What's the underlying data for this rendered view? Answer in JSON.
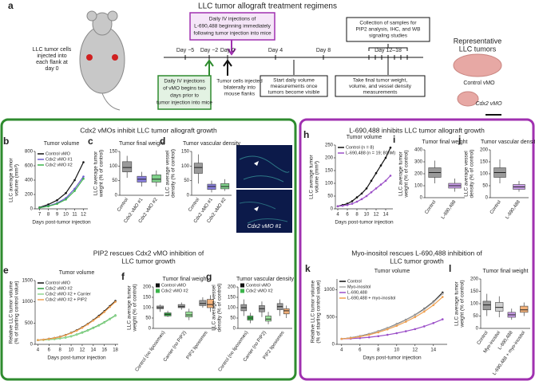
{
  "panel_a": {
    "letter": "a",
    "title": "LLC tumor allograft treatment regimens",
    "mouse_caption": [
      "LLC tumor cells",
      "injected into",
      "each flank at",
      "day 0"
    ],
    "days": [
      "Day −5",
      "Day −2",
      "Day 0",
      "Day 4",
      "Day 8",
      "Day 12–18"
    ],
    "purple_box": [
      "Daily IV injections of",
      "L-690,488 beginning immediately",
      "following tumor injection into mice"
    ],
    "green_box": [
      "Daily IV injections",
      "of vMO begins two",
      "days prior to",
      "tumor injection into mice"
    ],
    "injected": [
      "Tumor cells injected",
      "bilaterally into",
      "mouse flanks"
    ],
    "start_box": [
      "Start daily volume",
      "measurements once",
      "tumors become visible"
    ],
    "final_box": [
      "Take final tumor weight,",
      "volume, and vessel density",
      "measurements"
    ],
    "collection_box": [
      "Collection of samples for",
      "PIP2 analysis, IHC, and WB",
      "signaling studies"
    ],
    "tumors_title": [
      "Representative",
      "LLC tumors"
    ],
    "tumor_control": "Control vMO",
    "tumor_cdx2": "Cdx2 vMO"
  },
  "sections": [
    [
      "Cdx2 vMOs inhibit LLC tumor allograft growth"
    ],
    [
      "PIP2 rescues Cdx2 vMO inhibition of",
      "LLC tumor growth"
    ],
    [
      "L-690,488 inhibits LLC tumor allograft growth"
    ],
    [
      "Myo-inositol rescues L-690,488 inhibition of",
      "LLC tumor growth"
    ]
  ],
  "micrograph_label": "Cdx2 vMO #1",
  "chart_data": [
    {
      "type": "line",
      "panel": "b",
      "title": "Tumor volume",
      "xlabel": "Days post-tumor injection",
      "ylabel": [
        "LLC average tumor",
        "volume (mm³)"
      ],
      "x": [
        7,
        8,
        9,
        10,
        11,
        12
      ],
      "xlim": [
        6.5,
        12.5
      ],
      "xticks": [
        7,
        8,
        9,
        10,
        11,
        12
      ],
      "ylim": [
        0,
        800
      ],
      "yticks": [
        0,
        200,
        400,
        600,
        800
      ],
      "series": [
        {
          "name": "Control vMO",
          "color": "#111111",
          "values": [
            20,
            60,
            120,
            220,
            400,
            650
          ]
        },
        {
          "name": "Cdx2 vMO #1",
          "color": "#6a5acd",
          "values": [
            15,
            40,
            80,
            150,
            280,
            450
          ]
        },
        {
          "name": "Cdx2 vMO #2",
          "color": "#3cb44b",
          "values": [
            15,
            35,
            70,
            130,
            250,
            420
          ]
        }
      ]
    },
    {
      "type": "box",
      "panel": "c",
      "title": "Tumor final weight",
      "ylabel": [
        "LLC average tumor",
        "weight (% of control)"
      ],
      "categories": [
        "Control",
        "Cdx2 vMO #1",
        "Cdx2 vMO #2"
      ],
      "ylim": [
        0,
        150
      ],
      "yticks": [
        0,
        50,
        100,
        150
      ],
      "boxes": [
        {
          "color": "#9a9a9a",
          "min": 60,
          "q1": 80,
          "median": 95,
          "q3": 115,
          "max": 135
        },
        {
          "color": "#8a7fe0",
          "min": 30,
          "q1": 45,
          "median": 55,
          "q3": 65,
          "max": 80
        },
        {
          "color": "#7fd18a",
          "min": 30,
          "q1": 45,
          "median": 55,
          "q3": 70,
          "max": 85
        }
      ]
    },
    {
      "type": "box",
      "panel": "d",
      "title": "Tumor vascular density",
      "ylabel": [
        "LLC average vessel",
        "density (% of control)"
      ],
      "categories": [
        "Control",
        "Cdx2 vMO #1",
        "Cdx2 vMO #2"
      ],
      "ylim": [
        0,
        150
      ],
      "yticks": [
        0,
        50,
        100,
        150
      ],
      "boxes": [
        {
          "color": "#9a9a9a",
          "min": 40,
          "q1": 75,
          "median": 95,
          "q3": 110,
          "max": 140
        },
        {
          "color": "#8a7fe0",
          "min": 10,
          "q1": 20,
          "median": 30,
          "q3": 38,
          "max": 50
        },
        {
          "color": "#7fd18a",
          "min": 15,
          "q1": 22,
          "median": 30,
          "q3": 40,
          "max": 55
        }
      ]
    },
    {
      "type": "line",
      "panel": "e",
      "title": "Tumor volume",
      "xlabel": "Days post-tumor injection",
      "ylabel": [
        "Relative LLC tumor volume",
        "(% of starting control value)"
      ],
      "x": [
        4,
        5,
        6,
        7,
        8,
        9,
        10,
        11,
        12,
        13,
        14,
        15,
        16,
        17,
        18
      ],
      "xlim": [
        3.5,
        18.5
      ],
      "xticks": [
        4,
        6,
        8,
        10,
        12,
        14,
        16,
        18
      ],
      "ylim": [
        0,
        1500
      ],
      "yticks": [
        0,
        500,
        1000,
        1500
      ],
      "series": [
        {
          "name": "Control vMO",
          "color": "#111111",
          "values": [
            100,
            110,
            130,
            150,
            180,
            220,
            270,
            330,
            400,
            480,
            570,
            670,
            780,
            900,
            1020
          ]
        },
        {
          "name": "Cdx2 vMO #2",
          "color": "#2e9e3e",
          "values": [
            100,
            105,
            115,
            125,
            140,
            160,
            190,
            230,
            280,
            330,
            390,
            450,
            520,
            600,
            680
          ]
        },
        {
          "name": "Cdx2 vMO #2 + Carrier",
          "color": "#8fd68f",
          "values": [
            100,
            105,
            112,
            122,
            138,
            158,
            185,
            225,
            270,
            320,
            380,
            440,
            510,
            590,
            670
          ]
        },
        {
          "name": "Cdx2 vMO #2 + PIP2",
          "color": "#f0a050",
          "values": [
            100,
            110,
            128,
            148,
            175,
            215,
            265,
            320,
            390,
            470,
            560,
            650,
            760,
            880,
            1000
          ]
        }
      ]
    },
    {
      "type": "box",
      "panel": "f",
      "title": "Tumor final weight",
      "ylabel": [
        "LLC average tumor",
        "weight (% of control)"
      ],
      "categories": [
        "Control (no liposomes)",
        "Carrier (no PIP2)",
        "PIP2 liposomes"
      ],
      "ylim": [
        0,
        200
      ],
      "yticks": [
        0,
        50,
        100,
        150,
        200
      ],
      "legend": [
        {
          "name": "Control vMO",
          "color": "#111111"
        },
        {
          "name": "Cdx2 vMO #2",
          "color": "#3cb44b"
        }
      ],
      "boxes": [
        {
          "color": "#9a9a9a",
          "min": 80,
          "q1": 95,
          "median": 100,
          "q3": 108,
          "max": 115
        },
        {
          "color": "#3cb44b",
          "min": 55,
          "q1": 60,
          "median": 68,
          "q3": 75,
          "max": 85
        },
        {
          "color": "#9a9a9a",
          "min": 90,
          "q1": 100,
          "median": 105,
          "q3": 115,
          "max": 125
        },
        {
          "color": "#9be39b",
          "min": 40,
          "q1": 55,
          "median": 65,
          "q3": 80,
          "max": 95
        },
        {
          "color": "#9a9a9a",
          "min": 100,
          "q1": 110,
          "median": 120,
          "q3": 135,
          "max": 150
        },
        {
          "color": "#f4b27a",
          "min": 80,
          "q1": 100,
          "median": 115,
          "q3": 140,
          "max": 160
        }
      ]
    },
    {
      "type": "box",
      "panel": "g",
      "title": "Tumor vascular density",
      "ylabel": [
        "LLC average vessel",
        "density (% of control)"
      ],
      "categories": [
        "Control (no liposomes)",
        "Carrier (no PIP2)",
        "PIP2 liposomes"
      ],
      "ylim": [
        0,
        200
      ],
      "yticks": [
        0,
        50,
        100,
        150,
        200
      ],
      "legend": [
        {
          "name": "Control vMO",
          "color": "#111111"
        },
        {
          "name": "Cdx2 vMO #2",
          "color": "#3cb44b"
        }
      ],
      "boxes": [
        {
          "color": "#9a9a9a",
          "min": 60,
          "q1": 85,
          "median": 100,
          "q3": 115,
          "max": 140
        },
        {
          "color": "#3cb44b",
          "min": 25,
          "q1": 40,
          "median": 50,
          "q3": 60,
          "max": 75
        },
        {
          "color": "#9a9a9a",
          "min": 55,
          "q1": 80,
          "median": 95,
          "q3": 110,
          "max": 130
        },
        {
          "color": "#9be39b",
          "min": 20,
          "q1": 35,
          "median": 45,
          "q3": 60,
          "max": 80
        },
        {
          "color": "#9a9a9a",
          "min": 60,
          "q1": 90,
          "median": 105,
          "q3": 120,
          "max": 140
        },
        {
          "color": "#f4b27a",
          "min": 50,
          "q1": 70,
          "median": 85,
          "q3": 95,
          "max": 110
        }
      ]
    },
    {
      "type": "line",
      "panel": "h",
      "title": "Tumor volume",
      "xlabel": "Days post-tumor injection",
      "ylabel": [
        "LLC average tumor",
        "volume (mm³)"
      ],
      "x": [
        4,
        5,
        6,
        7,
        8,
        9,
        10,
        11,
        12,
        13,
        14,
        15
      ],
      "xlim": [
        3.5,
        15.5
      ],
      "xticks": [
        4,
        6,
        8,
        10,
        12,
        14
      ],
      "ylim": [
        0,
        250
      ],
      "yticks": [
        0,
        50,
        100,
        150,
        200,
        250
      ],
      "series": [
        {
          "name": "Control (n = 8)",
          "color": "#111111",
          "values": [
            10,
            15,
            20,
            30,
            45,
            60,
            80,
            110,
            140,
            170,
            200,
            240
          ]
        },
        {
          "name": "L-690,488 (n = 19; 80nM)",
          "color": "#9b4fc8",
          "values": [
            10,
            12,
            15,
            20,
            28,
            38,
            50,
            65,
            80,
            95,
            110,
            130
          ]
        }
      ]
    },
    {
      "type": "box",
      "panel": "i",
      "title": "Tumor final weight",
      "ylabel": [
        "LLC average tumor",
        "weight (% of control)"
      ],
      "categories": [
        "Control",
        "L-690,488"
      ],
      "ylim": [
        0,
        400
      ],
      "yticks": [
        0,
        100,
        200,
        300,
        400
      ],
      "boxes": [
        {
          "color": "#9a9a9a",
          "min": 120,
          "q1": 170,
          "median": 210,
          "q3": 250,
          "max": 310
        },
        {
          "color": "#c79be6",
          "min": 50,
          "q1": 80,
          "median": 100,
          "q3": 120,
          "max": 160
        }
      ]
    },
    {
      "type": "box",
      "panel": "j",
      "title": "Tumor vascular density",
      "ylabel": [
        "LLC average vessel",
        "density (% of control)"
      ],
      "categories": [
        "Control",
        "L-690,488"
      ],
      "ylim": [
        0,
        200
      ],
      "yticks": [
        0,
        50,
        100,
        150,
        200
      ],
      "boxes": [
        {
          "color": "#9a9a9a",
          "min": 60,
          "q1": 85,
          "median": 105,
          "q3": 125,
          "max": 160
        },
        {
          "color": "#c79be6",
          "min": 25,
          "q1": 35,
          "median": 45,
          "q3": 55,
          "max": 70
        }
      ]
    },
    {
      "type": "line",
      "panel": "k",
      "title": "Tumor volume",
      "xlabel": "Days post-tumor injection",
      "ylabel": [
        "Relative LLC tumor volume",
        "(% of starting control value)"
      ],
      "x": [
        4,
        5,
        6,
        7,
        8,
        9,
        10,
        11,
        12,
        13,
        14,
        15
      ],
      "xlim": [
        3.5,
        15.5
      ],
      "xticks": [
        4,
        6,
        8,
        10,
        12,
        14
      ],
      "ylim": [
        0,
        1200
      ],
      "yticks": [
        0,
        500,
        1000
      ],
      "series": [
        {
          "name": "Control",
          "color": "#111111",
          "values": [
            100,
            120,
            150,
            190,
            240,
            300,
            370,
            450,
            540,
            650,
            780,
            950
          ]
        },
        {
          "name": "Myo-inositol",
          "color": "#aaaaaa",
          "values": [
            100,
            118,
            148,
            188,
            238,
            298,
            365,
            445,
            535,
            640,
            770,
            930
          ]
        },
        {
          "name": "L-690,488",
          "color": "#9b4fc8",
          "values": [
            100,
            105,
            115,
            130,
            150,
            175,
            205,
            240,
            280,
            330,
            390,
            460
          ]
        },
        {
          "name": "L-690,488 + myo-inositol",
          "color": "#f0a050",
          "values": [
            100,
            115,
            140,
            175,
            220,
            275,
            340,
            415,
            500,
            600,
            720,
            870
          ]
        }
      ]
    },
    {
      "type": "box",
      "panel": "l",
      "title": "Tumor final weight",
      "ylabel": [
        "LLC average tumor",
        "weight (% of control)"
      ],
      "categories": [
        "Control",
        "Myo-inositol",
        "L-690,488",
        "L-690,488 + myo-inositol"
      ],
      "ylim": [
        0,
        200
      ],
      "yticks": [
        0,
        50,
        100,
        150,
        200
      ],
      "boxes": [
        {
          "color": "#9a9a9a",
          "min": 50,
          "q1": 75,
          "median": 95,
          "q3": 110,
          "max": 140
        },
        {
          "color": "#d0d0d0",
          "min": 45,
          "q1": 70,
          "median": 85,
          "q3": 105,
          "max": 130
        },
        {
          "color": "#c79be6",
          "min": 35,
          "q1": 45,
          "median": 55,
          "q3": 65,
          "max": 80
        },
        {
          "color": "#f4b27a",
          "min": 50,
          "q1": 65,
          "median": 75,
          "q3": 90,
          "max": 105
        }
      ]
    }
  ]
}
